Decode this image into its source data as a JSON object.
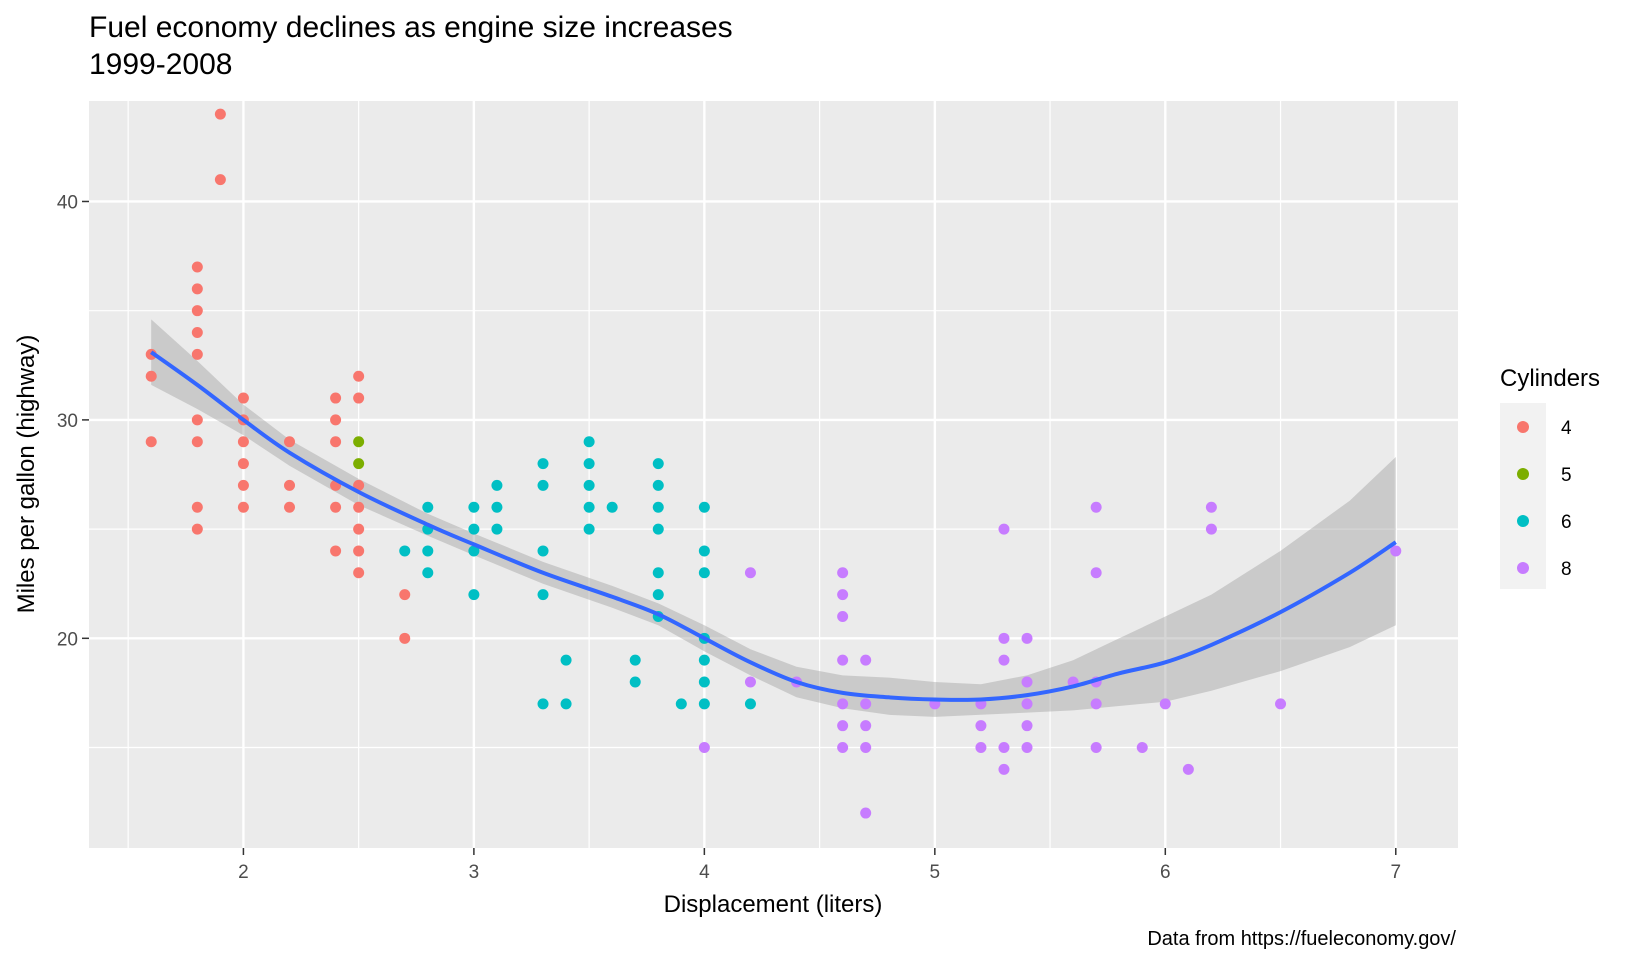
{
  "chart_data": {
    "type": "scatter",
    "title": "Fuel economy declines as engine size increases",
    "subtitle": "1999-2008",
    "xlabel": "Displacement (liters)",
    "ylabel": "Miles per gallon (highway)",
    "caption": "Data from https://fueleconomy.gov/",
    "xlim": [
      1.33,
      7.27
    ],
    "ylim": [
      10.4,
      44.6
    ],
    "x_ticks": [
      2,
      3,
      4,
      5,
      6,
      7
    ],
    "y_ticks": [
      20,
      30,
      40
    ],
    "grid": true,
    "legend": {
      "title": "Cylinders",
      "position": "right",
      "entries": [
        {
          "label": "4",
          "color": "#F8766D"
        },
        {
          "label": "5",
          "color": "#7CAE00"
        },
        {
          "label": "6",
          "color": "#00BFC4"
        },
        {
          "label": "8",
          "color": "#C77CFF"
        }
      ]
    },
    "series": [
      {
        "name": "4",
        "color": "#F8766D",
        "points": [
          [
            1.6,
            33
          ],
          [
            1.6,
            32
          ],
          [
            1.6,
            29
          ],
          [
            1.8,
            37
          ],
          [
            1.8,
            36
          ],
          [
            1.8,
            35
          ],
          [
            1.8,
            34
          ],
          [
            1.8,
            33
          ],
          [
            1.8,
            30
          ],
          [
            1.8,
            29
          ],
          [
            1.8,
            26
          ],
          [
            1.8,
            25
          ],
          [
            1.9,
            44
          ],
          [
            1.9,
            41
          ],
          [
            2.0,
            31
          ],
          [
            2.0,
            30
          ],
          [
            2.0,
            29
          ],
          [
            2.0,
            28
          ],
          [
            2.0,
            27
          ],
          [
            2.0,
            26
          ],
          [
            2.2,
            29
          ],
          [
            2.2,
            27
          ],
          [
            2.2,
            26
          ],
          [
            2.4,
            31
          ],
          [
            2.4,
            30
          ],
          [
            2.4,
            29
          ],
          [
            2.4,
            27
          ],
          [
            2.4,
            26
          ],
          [
            2.4,
            24
          ],
          [
            2.5,
            32
          ],
          [
            2.5,
            31
          ],
          [
            2.5,
            27
          ],
          [
            2.5,
            26
          ],
          [
            2.5,
            25
          ],
          [
            2.5,
            24
          ],
          [
            2.5,
            23
          ],
          [
            2.7,
            22
          ],
          [
            2.7,
            20
          ]
        ]
      },
      {
        "name": "5",
        "color": "#7CAE00",
        "points": [
          [
            2.5,
            29
          ],
          [
            2.5,
            28
          ]
        ]
      },
      {
        "name": "6",
        "color": "#00BFC4",
        "points": [
          [
            2.7,
            24
          ],
          [
            2.8,
            26
          ],
          [
            2.8,
            25
          ],
          [
            2.8,
            24
          ],
          [
            2.8,
            23
          ],
          [
            3.0,
            26
          ],
          [
            3.0,
            25
          ],
          [
            3.0,
            24
          ],
          [
            3.0,
            22
          ],
          [
            3.1,
            27
          ],
          [
            3.1,
            26
          ],
          [
            3.1,
            25
          ],
          [
            3.3,
            28
          ],
          [
            3.3,
            27
          ],
          [
            3.3,
            24
          ],
          [
            3.3,
            22
          ],
          [
            3.3,
            17
          ],
          [
            3.4,
            19
          ],
          [
            3.4,
            17
          ],
          [
            3.5,
            29
          ],
          [
            3.5,
            28
          ],
          [
            3.5,
            27
          ],
          [
            3.5,
            26
          ],
          [
            3.5,
            25
          ],
          [
            3.6,
            26
          ],
          [
            3.7,
            19
          ],
          [
            3.7,
            18
          ],
          [
            3.8,
            28
          ],
          [
            3.8,
            27
          ],
          [
            3.8,
            26
          ],
          [
            3.8,
            25
          ],
          [
            3.8,
            23
          ],
          [
            3.8,
            22
          ],
          [
            3.8,
            21
          ],
          [
            3.9,
            17
          ],
          [
            4.0,
            26
          ],
          [
            4.0,
            24
          ],
          [
            4.0,
            23
          ],
          [
            4.0,
            20
          ],
          [
            4.0,
            19
          ],
          [
            4.0,
            18
          ],
          [
            4.0,
            17
          ],
          [
            4.2,
            17
          ]
        ]
      },
      {
        "name": "8",
        "color": "#C77CFF",
        "points": [
          [
            4.0,
            15
          ],
          [
            4.2,
            23
          ],
          [
            4.2,
            18
          ],
          [
            4.4,
            18
          ],
          [
            4.6,
            23
          ],
          [
            4.6,
            22
          ],
          [
            4.6,
            21
          ],
          [
            4.6,
            19
          ],
          [
            4.6,
            17
          ],
          [
            4.6,
            16
          ],
          [
            4.6,
            15
          ],
          [
            4.7,
            19
          ],
          [
            4.7,
            17
          ],
          [
            4.7,
            16
          ],
          [
            4.7,
            15
          ],
          [
            4.7,
            12
          ],
          [
            5.0,
            17
          ],
          [
            5.2,
            17
          ],
          [
            5.2,
            16
          ],
          [
            5.2,
            15
          ],
          [
            5.3,
            25
          ],
          [
            5.3,
            20
          ],
          [
            5.3,
            19
          ],
          [
            5.3,
            15
          ],
          [
            5.3,
            14
          ],
          [
            5.4,
            20
          ],
          [
            5.4,
            18
          ],
          [
            5.4,
            17
          ],
          [
            5.4,
            16
          ],
          [
            5.4,
            15
          ],
          [
            5.6,
            18
          ],
          [
            5.7,
            26
          ],
          [
            5.7,
            23
          ],
          [
            5.7,
            18
          ],
          [
            5.7,
            17
          ],
          [
            5.7,
            15
          ],
          [
            5.9,
            15
          ],
          [
            6.0,
            17
          ],
          [
            6.1,
            14
          ],
          [
            6.2,
            26
          ],
          [
            6.2,
            25
          ],
          [
            6.5,
            17
          ],
          [
            7.0,
            24
          ]
        ]
      }
    ],
    "smooth": {
      "method": "loess",
      "color": "#3366FF",
      "fit": [
        [
          1.6,
          33.1
        ],
        [
          1.8,
          31.6
        ],
        [
          2.0,
          30.0
        ],
        [
          2.2,
          28.5
        ],
        [
          2.5,
          26.7
        ],
        [
          2.8,
          25.2
        ],
        [
          3.0,
          24.3
        ],
        [
          3.3,
          23.0
        ],
        [
          3.6,
          21.9
        ],
        [
          3.8,
          21.1
        ],
        [
          4.0,
          20.0
        ],
        [
          4.2,
          18.9
        ],
        [
          4.4,
          18.0
        ],
        [
          4.6,
          17.5
        ],
        [
          4.8,
          17.3
        ],
        [
          5.0,
          17.2
        ],
        [
          5.2,
          17.2
        ],
        [
          5.4,
          17.4
        ],
        [
          5.6,
          17.8
        ],
        [
          5.8,
          18.4
        ],
        [
          6.0,
          18.9
        ],
        [
          6.2,
          19.7
        ],
        [
          6.5,
          21.2
        ],
        [
          6.8,
          23.0
        ],
        [
          7.0,
          24.4
        ]
      ],
      "upper": [
        [
          1.6,
          34.6
        ],
        [
          1.8,
          32.7
        ],
        [
          2.0,
          30.7
        ],
        [
          2.2,
          29.1
        ],
        [
          2.5,
          27.3
        ],
        [
          2.8,
          25.7
        ],
        [
          3.0,
          24.8
        ],
        [
          3.3,
          23.5
        ],
        [
          3.6,
          22.4
        ],
        [
          3.8,
          21.6
        ],
        [
          4.0,
          20.6
        ],
        [
          4.2,
          19.5
        ],
        [
          4.4,
          18.7
        ],
        [
          4.6,
          18.3
        ],
        [
          4.8,
          18.2
        ],
        [
          5.0,
          18.0
        ],
        [
          5.2,
          17.9
        ],
        [
          5.4,
          18.3
        ],
        [
          5.6,
          19.0
        ],
        [
          5.8,
          20.0
        ],
        [
          6.0,
          21.0
        ],
        [
          6.2,
          22.0
        ],
        [
          6.5,
          24.0
        ],
        [
          6.8,
          26.3
        ],
        [
          7.0,
          28.3
        ]
      ],
      "lower": [
        [
          1.6,
          31.6
        ],
        [
          1.8,
          30.5
        ],
        [
          2.0,
          29.3
        ],
        [
          2.2,
          27.9
        ],
        [
          2.5,
          26.1
        ],
        [
          2.8,
          24.7
        ],
        [
          3.0,
          23.8
        ],
        [
          3.3,
          22.5
        ],
        [
          3.6,
          21.4
        ],
        [
          3.8,
          20.6
        ],
        [
          4.0,
          19.4
        ],
        [
          4.2,
          18.3
        ],
        [
          4.4,
          17.3
        ],
        [
          4.6,
          16.8
        ],
        [
          4.8,
          16.5
        ],
        [
          5.0,
          16.4
        ],
        [
          5.2,
          16.5
        ],
        [
          5.4,
          16.6
        ],
        [
          5.6,
          16.7
        ],
        [
          5.8,
          16.9
        ],
        [
          6.0,
          17.1
        ],
        [
          6.2,
          17.6
        ],
        [
          6.5,
          18.5
        ],
        [
          6.8,
          19.6
        ],
        [
          7.0,
          20.6
        ]
      ]
    }
  }
}
